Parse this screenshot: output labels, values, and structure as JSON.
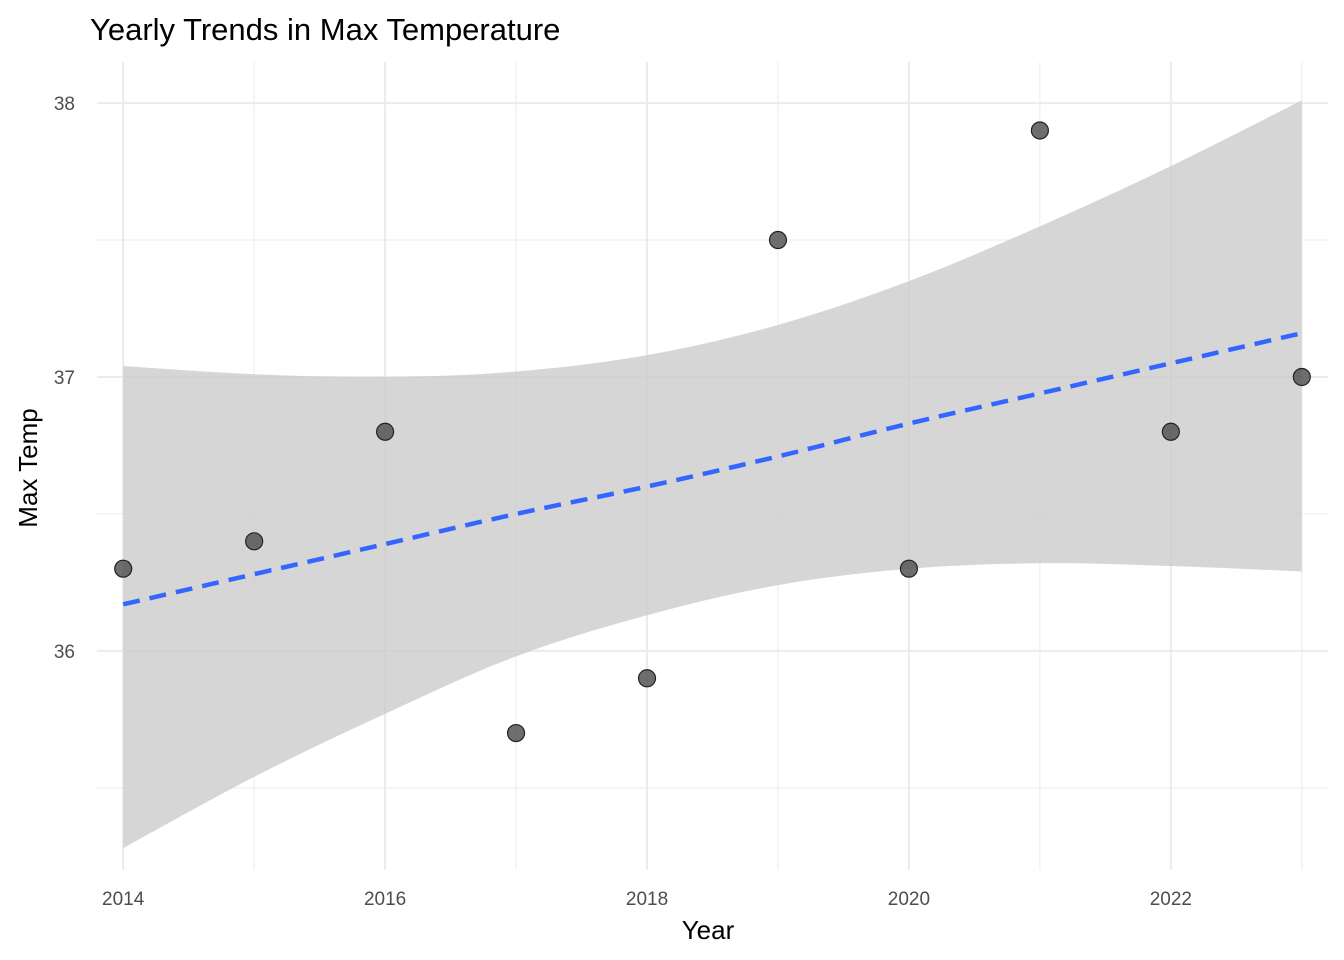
{
  "chart_data": {
    "type": "scatter",
    "title": "Yearly Trends in Max Temperature",
    "xlabel": "Year",
    "ylabel": "Max Temp",
    "x_ticks": [
      2014,
      2016,
      2018,
      2020,
      2022
    ],
    "y_ticks": [
      36,
      37,
      38
    ],
    "xlim": [
      2013.8,
      2023.2
    ],
    "ylim": [
      35.2,
      38.15
    ],
    "grid": true,
    "colors": {
      "points": "#555555",
      "trend_line": "#3366FF",
      "ribbon": "#cccccc",
      "grid": "#ebebeb"
    },
    "series": [
      {
        "type": "scatter",
        "x": [
          2014,
          2015,
          2016,
          2017,
          2018,
          2019,
          2020,
          2021,
          2022,
          2023
        ],
        "y": [
          36.3,
          36.4,
          36.8,
          35.7,
          35.9,
          37.5,
          36.3,
          37.9,
          36.8,
          37.0
        ]
      },
      {
        "type": "smooth-line",
        "x": [
          2014,
          2015,
          2016,
          2017,
          2018,
          2019,
          2020,
          2021,
          2022,
          2023
        ],
        "y": [
          36.17,
          36.28,
          36.39,
          36.5,
          36.6,
          36.71,
          36.83,
          36.94,
          37.05,
          37.16
        ]
      },
      {
        "type": "confidence-band",
        "x": [
          2014,
          2015,
          2016,
          2017,
          2018,
          2019,
          2020,
          2021,
          2022,
          2023
        ],
        "lower": [
          35.28,
          35.54,
          35.77,
          35.98,
          36.13,
          36.24,
          36.3,
          36.32,
          36.31,
          36.29
        ],
        "upper": [
          37.04,
          37.01,
          37.0,
          37.02,
          37.08,
          37.19,
          37.35,
          37.55,
          37.77,
          38.01
        ]
      }
    ]
  }
}
